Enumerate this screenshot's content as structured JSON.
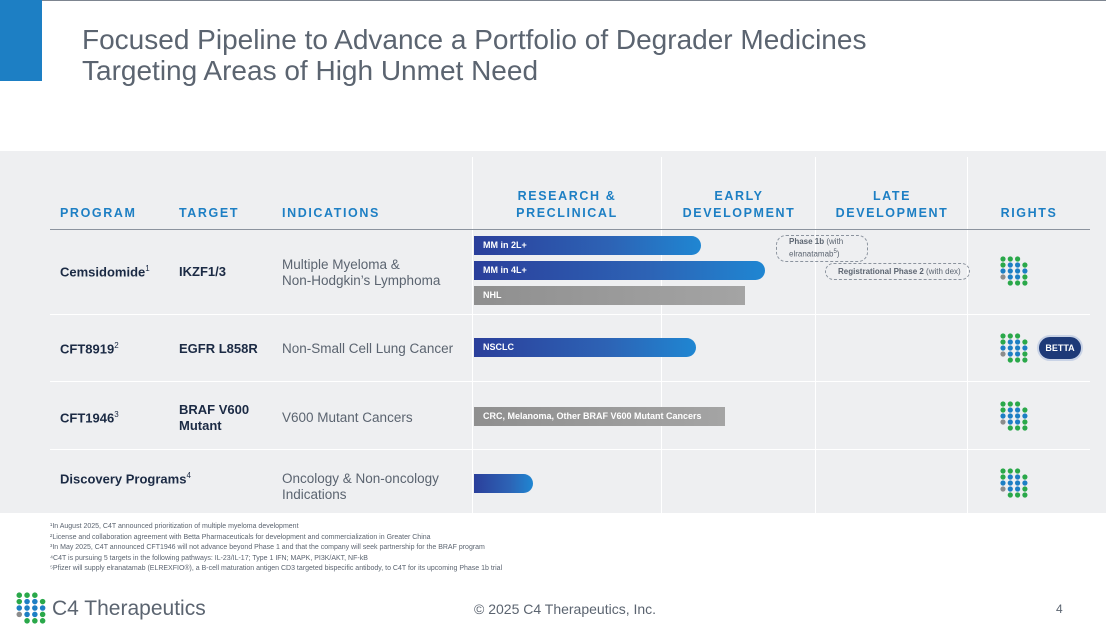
{
  "title": {
    "line1": "Focused Pipeline to Advance a Portfolio of Degrader Medicines",
    "line2": "Targeting Areas of High Unmet Need"
  },
  "colors": {
    "accent": "#1d7fc4",
    "navy": "#1b2a44",
    "bar_blue_start": "#2b3f9b",
    "bar_blue_end": "#1f86d2",
    "bar_gray": "#9a9a9a"
  },
  "headers": {
    "program": "PROGRAM",
    "target": "TARGET",
    "indications": "INDICATIONS",
    "research_line1": "RESEARCH &",
    "research_line2": "PRECLINICAL",
    "early_line1": "EARLY",
    "early_line2": "DEVELOPMENT",
    "late_line1": "LATE",
    "late_line2": "DEVELOPMENT",
    "rights": "RIGHTS"
  },
  "rows": [
    {
      "program": "Cemsidomide",
      "sup": "1",
      "target": "IKZF1/3",
      "indication_line1": "Multiple Myeloma &",
      "indication_line2": "Non-Hodgkin’s Lymphoma",
      "bars": [
        {
          "label": "MM in 2L+",
          "color": "blue",
          "progress_pct": 46
        },
        {
          "label": "MM in 4L+",
          "color": "blue",
          "progress_pct": 59
        },
        {
          "label": "NHL",
          "color": "gray",
          "progress_pct": 55
        }
      ],
      "callouts": [
        {
          "bold": "Phase 1b",
          "text": " (with elranatamab",
          "sup": "5",
          "close": ")"
        },
        {
          "bold": "Registrational Phase 2",
          "text": " (with dex)"
        }
      ],
      "rights_icon": "c4-dots-icon"
    },
    {
      "program": "CFT8919",
      "sup": "2",
      "target": "EGFR L858R",
      "indication_line1": "Non-Small Cell Lung Cancer",
      "bars": [
        {
          "label": "NSCLC",
          "color": "blue",
          "progress_pct": 45
        }
      ],
      "rights_icon": "c4-dots-icon",
      "partner": "BETTA"
    },
    {
      "program": "CFT1946",
      "sup": "3",
      "target_line1": "BRAF V600",
      "target_line2": "Mutant",
      "indication_line1": "V600 Mutant Cancers",
      "bars": [
        {
          "label": "CRC, Melanoma, Other BRAF V600 Mutant Cancers",
          "color": "gray",
          "progress_pct": 51
        }
      ],
      "rights_icon": "c4-dots-icon"
    },
    {
      "program": "Discovery Programs",
      "sup": "4",
      "indication_line1": "Oncology & Non-oncology",
      "indication_line2": "Indications",
      "bars": [
        {
          "label": "",
          "color": "blue",
          "progress_pct": 12
        }
      ],
      "rights_icon": "c4-dots-icon"
    }
  ],
  "footnotes": [
    "¹In August 2025, C4T announced prioritization of multiple myeloma development",
    "²License and collaboration agreement with Betta Pharmaceuticals for development and commercialization in Greater China",
    "³In May 2025, C4T announced CFT1946 will not advance beyond Phase 1 and that the company will seek partnership for the BRAF program",
    "⁴C4T is pursuing 5 targets in the following pathways: IL-23/IL-17; Type 1 IFN; MAPK, PI3K/AKT, NF-kB",
    "⁵Pfizer will supply elranatamab (ELREXFIO®), a B-cell maturation antigen CD3 targeted bispecific antibody, to C4T for its upcoming Phase 1b trial"
  ],
  "footer": {
    "brand": "C4 Therapeutics",
    "copyright": "© 2025 C4 Therapeutics, Inc.",
    "page": "4"
  }
}
